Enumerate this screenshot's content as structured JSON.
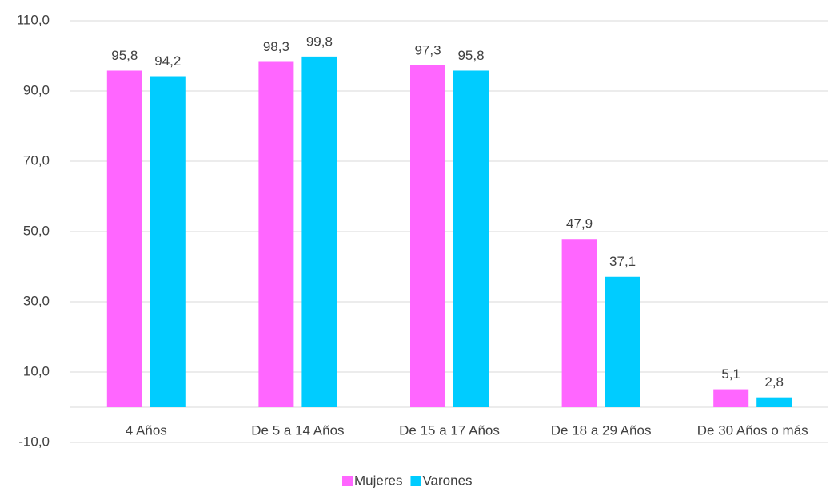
{
  "chart_data": {
    "type": "bar",
    "categories": [
      "4 Años",
      "De 5 a 14 Años",
      "De 15 a 17 Años",
      "De 18 a 29 Años",
      "De 30 Años o más"
    ],
    "series": [
      {
        "name": "Mujeres",
        "color": "#ff66ff",
        "values": [
          95.8,
          98.3,
          97.3,
          47.9,
          5.1
        ],
        "value_labels": [
          "95,8",
          "98,3",
          "97,3",
          "47,9",
          "5,1"
        ]
      },
      {
        "name": "Varones",
        "color": "#00ccff",
        "values": [
          94.2,
          99.8,
          95.8,
          37.1,
          2.8
        ],
        "value_labels": [
          "94,2",
          "99,8",
          "95,8",
          "37,1",
          "2,8"
        ]
      }
    ],
    "ylim": [
      -10,
      110
    ],
    "yticks": [
      {
        "value": -10,
        "label": "-10,0"
      },
      {
        "value": 10,
        "label": "10,0"
      },
      {
        "value": 30,
        "label": "30,0"
      },
      {
        "value": 50,
        "label": "50,0"
      },
      {
        "value": 70,
        "label": "70,0"
      },
      {
        "value": 90,
        "label": "90,0"
      },
      {
        "value": 110,
        "label": "110,0"
      }
    ],
    "grid": true,
    "legend": "bottom"
  }
}
